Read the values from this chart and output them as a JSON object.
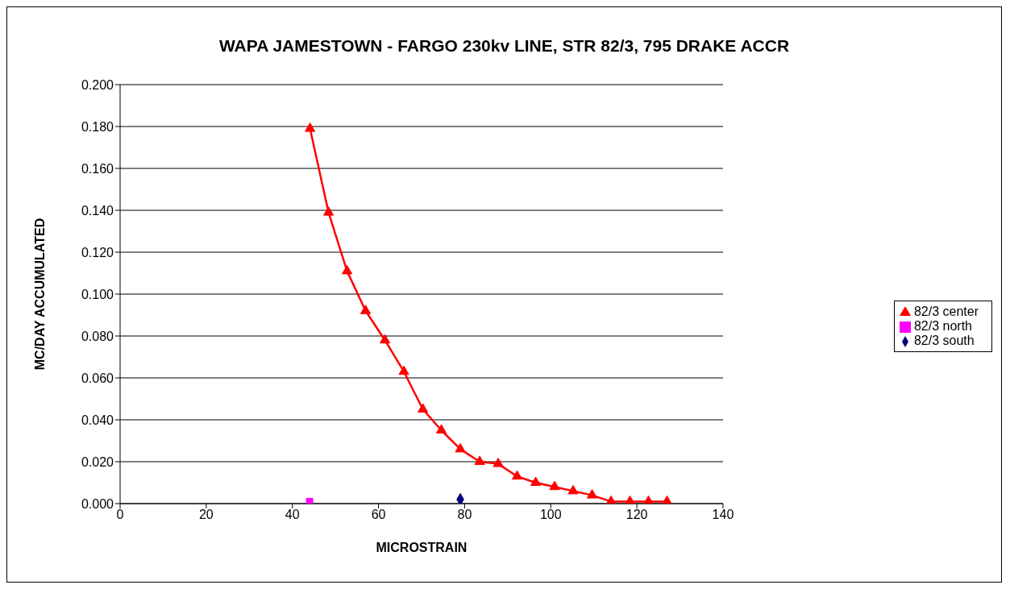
{
  "chart_data": {
    "type": "line",
    "title": "WAPA JAMESTOWN - FARGO 230kv LINE, STR 82/3, 795 DRAKE ACCR",
    "xlabel": "MICROSTRAIN",
    "ylabel": "MC/DAY ACCUMULATED",
    "series": [
      {
        "name": "82/3 south",
        "color": "#000080",
        "marker": "diamond",
        "x": [
          79
        ],
        "values": [
          0.002
        ]
      },
      {
        "name": "82/3 north",
        "color": "#ff00ff",
        "marker": "square",
        "x": [
          44
        ],
        "values": [
          0.001
        ]
      },
      {
        "name": "82/3 center",
        "color": "#ff0000",
        "marker": "triangle",
        "x": [
          44.1,
          48.4,
          52.7,
          57.0,
          61.5,
          65.9,
          70.3,
          74.6,
          79.0,
          83.5,
          87.8,
          92.2,
          96.5,
          100.9,
          105.2,
          109.6,
          114.0,
          118.4,
          122.7,
          127.0
        ],
        "values": [
          0.179,
          0.139,
          0.111,
          0.092,
          0.078,
          0.063,
          0.045,
          0.035,
          0.026,
          0.02,
          0.019,
          0.013,
          0.01,
          0.008,
          0.006,
          0.004,
          0.001,
          0.001,
          0.001,
          0.001
        ]
      }
    ],
    "xlim": [
      0,
      140
    ],
    "xticks": [
      0,
      20,
      40,
      60,
      80,
      100,
      120,
      140
    ],
    "ylim": [
      0,
      0.2
    ],
    "yticks": [
      {
        "value": 0,
        "label": "0.000"
      },
      {
        "value": 0.02,
        "label": "0.020"
      },
      {
        "value": 0.04,
        "label": "0.040"
      },
      {
        "value": 0.06,
        "label": "0.060"
      },
      {
        "value": 0.08,
        "label": "0.080"
      },
      {
        "value": 0.1,
        "label": "0.100"
      },
      {
        "value": 0.12,
        "label": "0.120"
      },
      {
        "value": 0.14,
        "label": "0.140"
      },
      {
        "value": 0.16,
        "label": "0.160"
      },
      {
        "value": 0.18,
        "label": "0.180"
      },
      {
        "value": 0.2,
        "label": "0.200"
      }
    ],
    "grid": "y",
    "legend": "right",
    "line_style": "solid"
  }
}
